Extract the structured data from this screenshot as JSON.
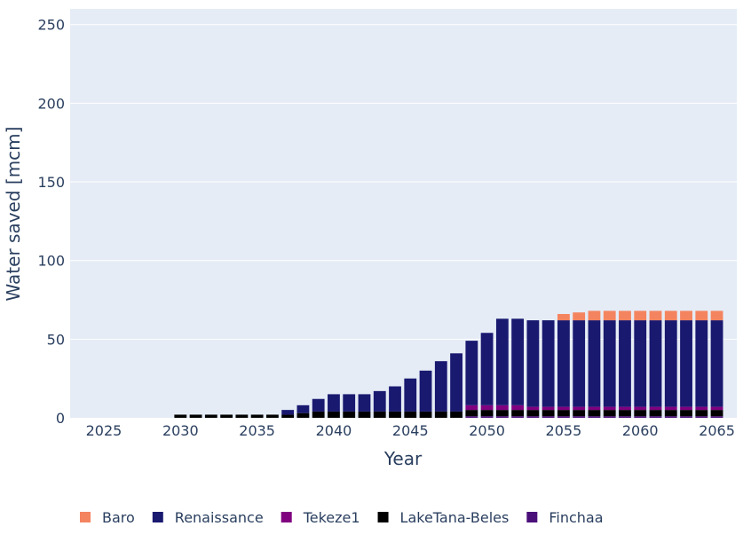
{
  "chart_data": {
    "type": "bar",
    "barmode": "stack",
    "x": [
      2025,
      2026,
      2027,
      2028,
      2029,
      2030,
      2031,
      2032,
      2033,
      2034,
      2035,
      2036,
      2037,
      2038,
      2039,
      2040,
      2041,
      2042,
      2043,
      2044,
      2045,
      2046,
      2047,
      2048,
      2049,
      2050,
      2051,
      2052,
      2053,
      2054,
      2055,
      2056,
      2057,
      2058,
      2059,
      2060,
      2061,
      2062,
      2063,
      2064,
      2065
    ],
    "xlabel": "Year",
    "ylabel": "Water saved [mcm]",
    "ylim": [
      0,
      260
    ],
    "xlim": [
      2022.8,
      2066.3
    ],
    "yticks": [
      0,
      50,
      100,
      150,
      200,
      250
    ],
    "xticks": [
      2025,
      2030,
      2035,
      2040,
      2045,
      2050,
      2055,
      2060,
      2065
    ],
    "grid": true,
    "legend_position": "bottom",
    "series": [
      {
        "name": "Finchaa",
        "color": "#4b0f7a",
        "values": [
          0,
          0,
          0,
          0,
          0,
          0,
          0,
          0,
          0,
          0,
          0,
          0,
          0,
          0,
          0,
          0,
          0,
          0,
          0,
          0,
          0,
          0,
          0,
          0,
          1,
          1,
          1,
          1,
          1,
          1,
          1,
          1,
          1,
          1,
          1,
          1,
          1,
          1,
          1,
          1,
          1
        ]
      },
      {
        "name": "LakeTana-Beles",
        "color": "#000000",
        "values": [
          0,
          0,
          0,
          0,
          0,
          2,
          2,
          2,
          2,
          2,
          2,
          2,
          2,
          3,
          4,
          4,
          4,
          4,
          4,
          4,
          4,
          4,
          4,
          4,
          4,
          4,
          4,
          4,
          4,
          4,
          4,
          4,
          4,
          4,
          4,
          4,
          4,
          4,
          4,
          4,
          4
        ]
      },
      {
        "name": "Tekeze1",
        "color": "#800080",
        "values": [
          0,
          0,
          0,
          0,
          0,
          0,
          0,
          0,
          0,
          0,
          0,
          0,
          0,
          0,
          0,
          0,
          0,
          0,
          0,
          0,
          0,
          0,
          0,
          0,
          3,
          3,
          3,
          3,
          2,
          2,
          2,
          2,
          2,
          2,
          2,
          2,
          2,
          2,
          2,
          2,
          2
        ]
      },
      {
        "name": "Renaissance",
        "color": "#191970",
        "values": [
          0,
          0,
          0,
          0,
          0,
          0,
          0,
          0,
          0,
          0,
          0,
          0,
          3,
          5,
          8,
          11,
          11,
          11,
          13,
          16,
          21,
          26,
          32,
          37,
          41,
          46,
          55,
          55,
          55,
          55,
          55,
          55,
          55,
          55,
          55,
          55,
          55,
          55,
          55,
          55,
          55
        ]
      },
      {
        "name": "Baro",
        "color": "#f4845f",
        "values": [
          0,
          0,
          0,
          0,
          0,
          0,
          0,
          0,
          0,
          0,
          0,
          0,
          0,
          0,
          0,
          0,
          0,
          0,
          0,
          0,
          0,
          0,
          0,
          0,
          0,
          0,
          0,
          0,
          0,
          0,
          4,
          5,
          6,
          6,
          6,
          6,
          6,
          6,
          6,
          6,
          6
        ]
      }
    ],
    "legend_order": [
      "Baro",
      "Renaissance",
      "Tekeze1",
      "LakeTana-Beles",
      "Finchaa"
    ]
  }
}
